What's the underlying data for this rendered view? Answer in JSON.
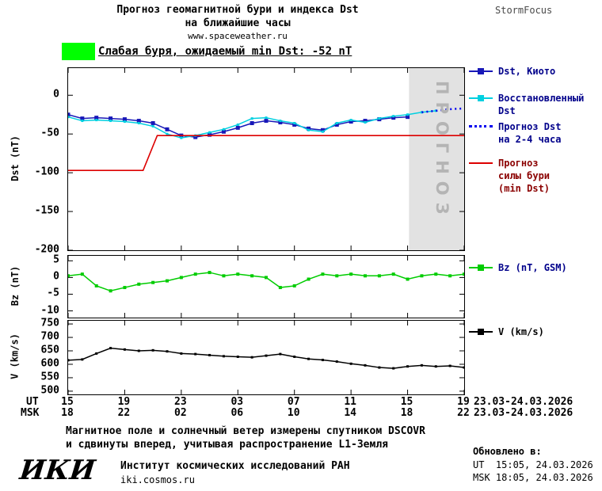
{
  "header": {
    "title_line1": "Прогноз геомагнитной бури и индекса Dst",
    "title_line2": "на ближайшие часы",
    "site": "www.spaceweather.ru",
    "brand": "StormFocus"
  },
  "alert": {
    "text": "Слабая буря, ожидаемый min Dst: -52 nT",
    "swatch_color": "#00ff00"
  },
  "axes": {
    "ut_label": "UT",
    "msk_label": "MSK",
    "ut_date": "23.03-24.03.2026",
    "msk_date": "23.03-24.03.2026"
  },
  "footer": {
    "note_line1": "Магнитное поле и солнечный ветер измерены спутником DSCOVR",
    "note_line2": "и сдвинуты вперед, учитывая распространение L1-Земля",
    "updated_label": "Обновлено в:",
    "updated_ut": "UT  15:05, 24.03.2026",
    "updated_msk": "MSK 18:05, 24.03.2026",
    "logo": "ИКИ",
    "institute": "Институт космических исследований РАН",
    "institute_url": "iki.cosmos.ru"
  },
  "chart_data": {
    "type": "line",
    "xlim": [
      0,
      28
    ],
    "x_tick_step": 4,
    "x_ticks_ut": [
      "15",
      "19",
      "23",
      "03",
      "07",
      "11",
      "15",
      "19"
    ],
    "x_ticks_msk": [
      "18",
      "22",
      "02",
      "06",
      "10",
      "14",
      "18",
      "22"
    ],
    "panels": [
      {
        "id": "dst",
        "ylabel": "Dst (nT)",
        "ylim": [
          -200,
          35
        ],
        "yticks": [
          0,
          -50,
          -100,
          -150,
          -200
        ],
        "band": {
          "x0": 24.1,
          "x1": 28,
          "color": "#e2e2e2",
          "label": "ПРОГНОЗ",
          "label_color": "#b4b4b4"
        },
        "series": [
          {
            "name": "Dst, Киото",
            "color": "#1818b8",
            "marker": 5,
            "x0": 0,
            "values": [
              -25,
              -30,
              -29,
              -30,
              -31,
              -33,
              -36,
              -44,
              -52,
              -54,
              -51,
              -47,
              -42,
              -36,
              -33,
              -35,
              -38,
              -43,
              -45,
              -38,
              -34,
              -33,
              -31,
              -29,
              -28
            ]
          },
          {
            "name": "Восстановленный Dst",
            "color": "#00d0e0",
            "marker": 3,
            "x0": 0,
            "values": [
              -28,
              -33,
              -32,
              -33,
              -34,
              -36,
              -40,
              -50,
              -55,
              -52,
              -48,
              -44,
              -38,
              -30,
              -29,
              -33,
              -36,
              -45,
              -47,
              -36,
              -32,
              -35,
              -30,
              -27,
              -25,
              -22,
              -20
            ]
          },
          {
            "name": "Прогноз Dst на 2-4 часа",
            "color": "#0000ee",
            "dash": "2,4",
            "width": 2.5,
            "x": [
              25,
              26,
              27,
              28
            ],
            "values": [
              -22,
              -20,
              -18,
              -17
            ]
          },
          {
            "name": "Прогноз силы бури (min Dst)",
            "color": "#dd0000",
            "width": 1.6,
            "x": [
              0,
              5.3,
              6.3,
              28
            ],
            "values": [
              -97,
              -97,
              -52,
              -52
            ]
          }
        ],
        "legend": [
          {
            "lines": [
              "Dst, Киото"
            ]
          },
          {
            "lines": [
              "Восстановленный",
              "Dst"
            ]
          },
          {
            "lines": [
              "Прогноз Dst",
              "на 2-4 часа"
            ]
          },
          {
            "lines": [
              "Прогноз",
              "силы бури",
              "(min Dst)"
            ]
          }
        ]
      },
      {
        "id": "bz",
        "ylabel": "Bz (nT)",
        "ylim": [
          -12,
          6.5
        ],
        "yticks": [
          5,
          0,
          -5,
          -10
        ],
        "series": [
          {
            "name": "Bz (nT, GSM)",
            "color": "#00cc00",
            "marker": 4,
            "x0": 0,
            "values": [
              0.5,
              1,
              -2.5,
              -4,
              -3,
              -2,
              -1.5,
              -1,
              0,
              1,
              1.5,
              0.5,
              1,
              0.5,
              0,
              -3,
              -2.5,
              -0.5,
              1,
              0.5,
              1,
              0.5,
              0.5,
              1,
              -0.5,
              0.5,
              1,
              0.5,
              1
            ]
          }
        ],
        "legend": [
          {
            "lines": [
              "Bz (nT, GSM)"
            ]
          }
        ]
      },
      {
        "id": "v",
        "ylabel": "V (km/s)",
        "ylim": [
          488,
          762
        ],
        "yticks": [
          750,
          700,
          650,
          600,
          550,
          500
        ],
        "series": [
          {
            "name": "V (km/s)",
            "color": "#000000",
            "marker": 3,
            "x0": 0,
            "values": [
              615,
              618,
              640,
              660,
              655,
              650,
              652,
              648,
              640,
              638,
              634,
              630,
              628,
              626,
              632,
              638,
              628,
              620,
              616,
              610,
              602,
              596,
              588,
              585,
              592,
              596,
              592,
              594,
              588
            ]
          }
        ],
        "legend": [
          {
            "lines": [
              "V (km/s)"
            ]
          }
        ]
      }
    ]
  }
}
